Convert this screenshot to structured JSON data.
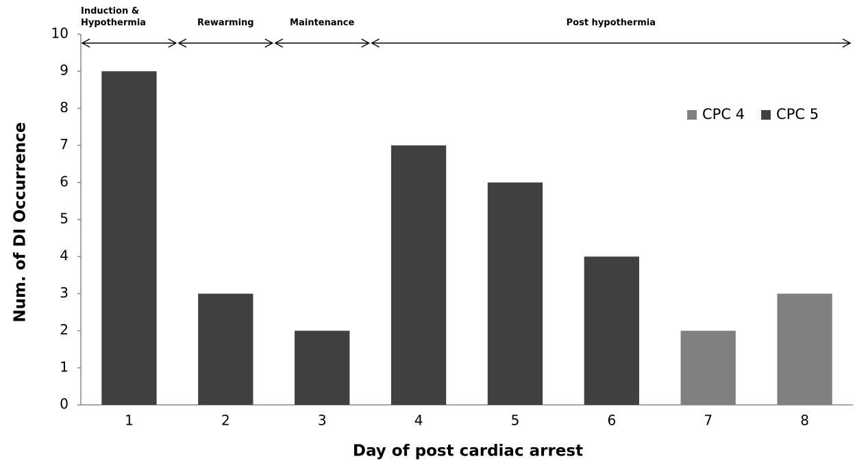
{
  "chart_data": {
    "type": "bar",
    "x_label": "Day of post cardiac arrest",
    "y_label": "Num. of DI Occurrence",
    "categories": [
      "1",
      "2",
      "3",
      "4",
      "5",
      "6",
      "7",
      "8"
    ],
    "series": [
      {
        "name": "CPC 4",
        "color": "#808080",
        "values": [
          null,
          null,
          null,
          null,
          null,
          null,
          2,
          3
        ]
      },
      {
        "name": "CPC 5",
        "color": "#404040",
        "values": [
          9,
          3,
          2,
          7,
          6,
          4,
          null,
          null
        ]
      }
    ],
    "ylim": [
      0,
      10
    ],
    "yticks": [
      0,
      1,
      2,
      3,
      4,
      5,
      6,
      7,
      8,
      9,
      10
    ],
    "grid": false,
    "legend": "upper right",
    "phases": [
      "Induction & Hypothermia",
      "Rewarming",
      "Maintenance",
      "Post hypothermia"
    ]
  }
}
